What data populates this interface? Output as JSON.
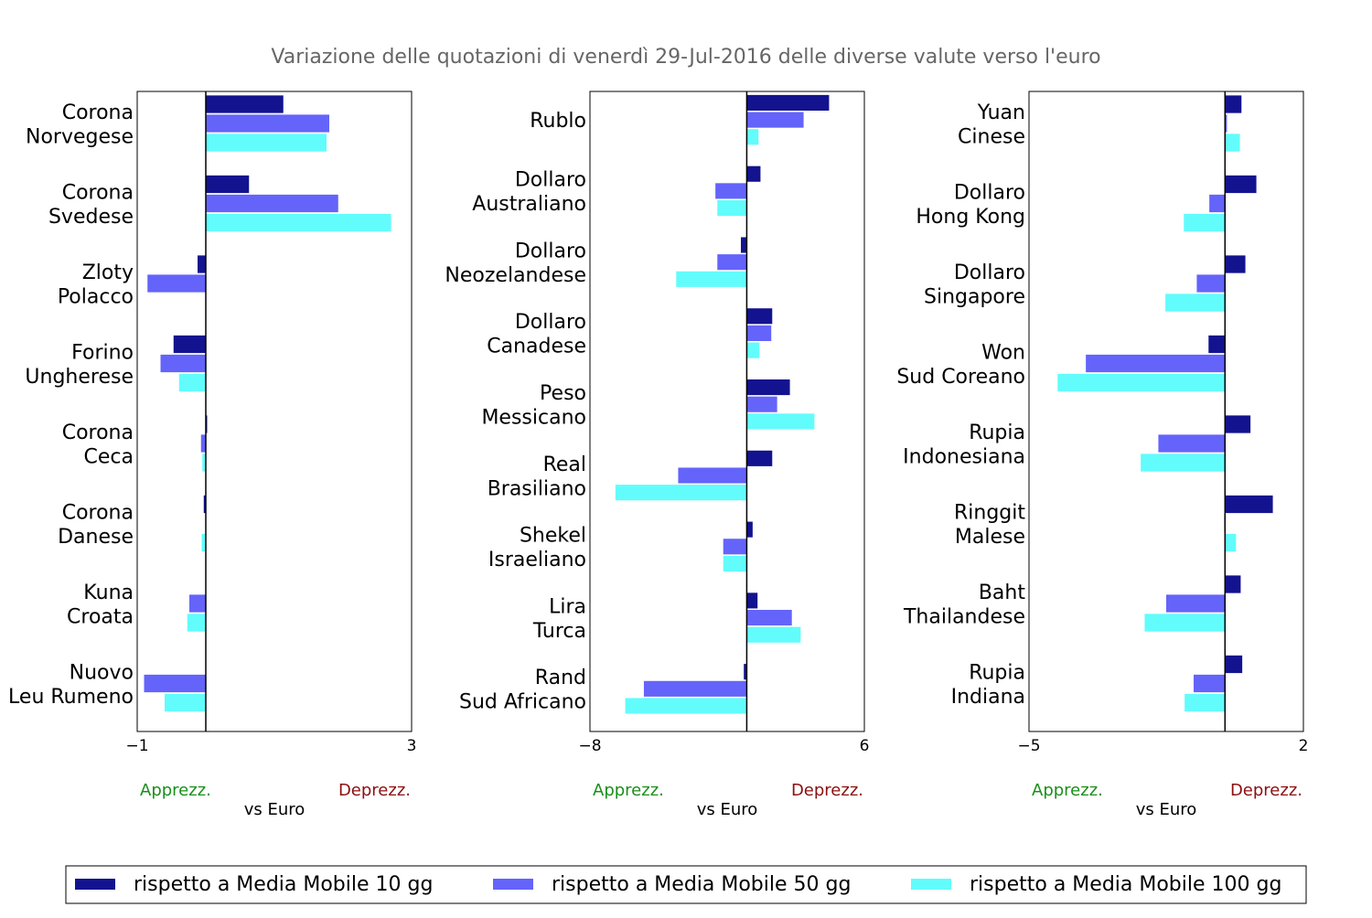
{
  "title": "Variazione delle quotazioni di venerdì 29-Jul-2016 delle diverse valute verso l'euro",
  "colors": {
    "ma10": "#13138f",
    "ma50": "#6464fa",
    "ma100": "#62fcfc",
    "apprezz": "#1a8f1a",
    "deprezz": "#8b1010",
    "title": "#666666"
  },
  "legend": {
    "ma10": "rispetto a Media Mobile 10 gg",
    "ma50": "rispetto a Media Mobile 50 gg",
    "ma100": "rispetto a Media Mobile 100 gg"
  },
  "chart_data": [
    {
      "type": "bar",
      "orientation": "horizontal",
      "xlim": [
        -1,
        3
      ],
      "xticks": [
        "−1",
        "3"
      ],
      "xlabel": "vs Euro",
      "annot_left": "Apprezz.",
      "annot_right": "Deprezz.",
      "categories": [
        [
          "Corona",
          "Norvegese"
        ],
        [
          "Corona",
          "Svedese"
        ],
        [
          "Zloty",
          "Polacco"
        ],
        [
          "Forino",
          "Ungherese"
        ],
        [
          "Corona",
          "Ceca"
        ],
        [
          "Corona",
          "Danese"
        ],
        [
          "Kuna",
          "Croata"
        ],
        [
          "Nuovo",
          "Leu Rumeno"
        ]
      ],
      "series": [
        {
          "name": "ma10",
          "values": [
            1.13,
            0.63,
            -0.12,
            -0.47,
            0.02,
            -0.03,
            0.0,
            0.0
          ]
        },
        {
          "name": "ma50",
          "values": [
            1.8,
            1.93,
            -0.85,
            -0.66,
            -0.07,
            0.0,
            -0.24,
            -0.9
          ]
        },
        {
          "name": "ma100",
          "values": [
            1.76,
            2.7,
            0.0,
            -0.39,
            -0.05,
            -0.06,
            -0.27,
            -0.6
          ]
        }
      ]
    },
    {
      "type": "bar",
      "orientation": "horizontal",
      "xlim": [
        -8,
        6
      ],
      "xticks": [
        "−8",
        "6"
      ],
      "xlabel": "vs Euro",
      "annot_left": "Apprezz.",
      "annot_right": "Deprezz.",
      "categories": [
        [
          "Rublo"
        ],
        [
          "Dollaro",
          "Australiano"
        ],
        [
          "Dollaro",
          "Neozelandese"
        ],
        [
          "Dollaro",
          "Canadese"
        ],
        [
          "Peso",
          "Messicano"
        ],
        [
          "Real",
          "Brasiliano"
        ],
        [
          "Shekel",
          "Israeliano"
        ],
        [
          "Lira",
          "Turca"
        ],
        [
          "Rand",
          "Sud Africano"
        ]
      ],
      "series": [
        {
          "name": "ma10",
          "values": [
            4.2,
            0.7,
            -0.3,
            1.3,
            2.2,
            1.3,
            0.3,
            0.55,
            -0.15
          ]
        },
        {
          "name": "ma50",
          "values": [
            2.9,
            -1.6,
            -1.5,
            1.25,
            1.55,
            -3.5,
            -1.2,
            2.3,
            -5.25
          ]
        },
        {
          "name": "ma100",
          "values": [
            0.6,
            -1.5,
            -3.6,
            0.65,
            3.45,
            -6.7,
            -1.2,
            2.75,
            -6.2
          ]
        }
      ]
    },
    {
      "type": "bar",
      "orientation": "horizontal",
      "xlim": [
        -5,
        2
      ],
      "xticks": [
        "−5",
        "2"
      ],
      "xlabel": "vs Euro",
      "annot_left": "Apprezz.",
      "annot_right": "Deprezz.",
      "categories": [
        [
          "Yuan",
          "Cinese"
        ],
        [
          "Dollaro",
          "Hong Kong"
        ],
        [
          "Dollaro",
          "Singapore"
        ],
        [
          "Won",
          "Sud Coreano"
        ],
        [
          "Rupia",
          "Indonesiana"
        ],
        [
          "Ringgit",
          "Malese"
        ],
        [
          "Baht",
          "Thailandese"
        ],
        [
          "Rupia",
          "Indiana"
        ]
      ],
      "series": [
        {
          "name": "ma10",
          "values": [
            0.42,
            0.8,
            0.52,
            -0.42,
            0.65,
            1.22,
            0.4,
            0.44
          ]
        },
        {
          "name": "ma50",
          "values": [
            0.05,
            -0.4,
            -0.72,
            -3.55,
            -1.7,
            -0.02,
            -1.5,
            -0.8
          ]
        },
        {
          "name": "ma100",
          "values": [
            0.38,
            -1.05,
            -1.52,
            -4.27,
            -2.15,
            0.28,
            -2.05,
            -1.03
          ]
        }
      ]
    }
  ]
}
